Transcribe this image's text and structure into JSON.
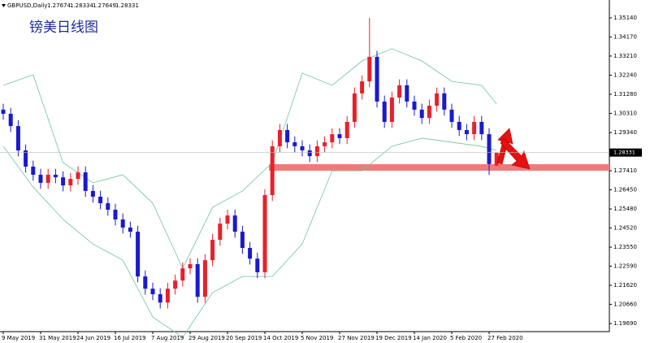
{
  "chart_data": {
    "type": "candlestick",
    "symbol": "GBPUSD,Daily",
    "title": "镑美日线图",
    "up_color": "#e8202a",
    "down_color": "#1a1acc",
    "categories": [
      "9 May 2019",
      null,
      null,
      null,
      null,
      "31 May 2019",
      null,
      null,
      null,
      null,
      "24 Jun 2019",
      null,
      null,
      null,
      null,
      "16 Jul 2019",
      null,
      null,
      null,
      null,
      "7 Aug 2019",
      null,
      null,
      null,
      null,
      "29 Aug 2019",
      null,
      null,
      null,
      null,
      "20 Sep 2019",
      null,
      null,
      null,
      null,
      "14 Oct 2019",
      null,
      null,
      null,
      null,
      "5 Nov 2019",
      null,
      null,
      null,
      null,
      "27 Nov 2019",
      null,
      null,
      null,
      null,
      "19 Dec 2019",
      null,
      null,
      null,
      null,
      "14 Jan 2020",
      null,
      null,
      null,
      null,
      "5 Feb 2020",
      null,
      null,
      null,
      null,
      "27 Feb 2020",
      null
    ],
    "open": [
      1.305,
      1.3029,
      1.2967,
      1.2844,
      1.2762,
      1.2721,
      1.268,
      1.2721,
      1.2708,
      1.2667,
      1.27,
      1.2733,
      1.2639,
      1.261,
      1.2577,
      1.2544,
      1.2495,
      1.2454,
      1.2433,
      1.2207,
      1.2145,
      1.2117,
      1.2075,
      1.2145,
      1.2186,
      1.2248,
      1.2269,
      1.2104,
      1.2289,
      1.2392,
      1.2474,
      1.2515,
      1.2433,
      1.2351,
      1.2297,
      1.2228,
      1.2618,
      1.2865,
      1.2947,
      1.2885,
      1.2865,
      1.2844,
      1.2815,
      1.2865,
      1.2885,
      1.2926,
      1.2906,
      1.2988,
      1.3132,
      1.3193,
      1.3317,
      1.3091,
      1.2988,
      1.3111,
      1.3173,
      1.3091,
      1.305,
      1.3008,
      1.307,
      1.3132,
      1.305,
      1.2988,
      1.2947,
      1.2926,
      1.2988,
      1.2926,
      1.27674
    ],
    "high": [
      1.308,
      1.3059,
      1.2997,
      1.2874,
      1.2792,
      1.2751,
      1.2751,
      1.2751,
      1.2738,
      1.273,
      1.2763,
      1.2763,
      1.2669,
      1.264,
      1.2607,
      1.2574,
      1.2525,
      1.2484,
      1.2463,
      1.2237,
      1.2175,
      1.2147,
      1.2175,
      1.2216,
      1.2278,
      1.2299,
      1.2299,
      1.2319,
      1.2422,
      1.2504,
      1.2545,
      1.2545,
      1.2463,
      1.2381,
      1.2327,
      1.2648,
      1.2895,
      1.2977,
      1.2977,
      1.2915,
      1.2895,
      1.2874,
      1.2895,
      1.2915,
      1.2956,
      1.2956,
      1.3018,
      1.3162,
      1.3223,
      1.3514,
      1.3347,
      1.3121,
      1.3141,
      1.3203,
      1.3203,
      1.3121,
      1.308,
      1.31,
      1.3162,
      1.3162,
      1.308,
      1.3018,
      1.2977,
      1.3018,
      1.3018,
      1.2956,
      1.28334
    ],
    "low": [
      1.2999,
      1.2937,
      1.2814,
      1.2732,
      1.2691,
      1.265,
      1.265,
      1.2678,
      1.2637,
      1.2637,
      1.267,
      1.2609,
      1.258,
      1.2547,
      1.2514,
      1.2465,
      1.2424,
      1.2403,
      1.2177,
      1.2115,
      1.2087,
      1.2045,
      1.2045,
      1.2115,
      1.2156,
      1.2218,
      1.2074,
      1.2074,
      1.2259,
      1.2362,
      1.2444,
      1.2403,
      1.2321,
      1.2267,
      1.2198,
      1.2198,
      1.2588,
      1.2835,
      1.2855,
      1.2835,
      1.2814,
      1.2785,
      1.2785,
      1.2835,
      1.2855,
      1.2876,
      1.2876,
      1.2958,
      1.3102,
      1.3163,
      1.3061,
      1.2958,
      1.2958,
      1.3081,
      1.3061,
      1.302,
      1.2978,
      1.2978,
      1.304,
      1.302,
      1.2958,
      1.2917,
      1.2896,
      1.2896,
      1.2896,
      1.272,
      1.27649
    ],
    "close": [
      1.3029,
      1.2967,
      1.2844,
      1.2762,
      1.2721,
      1.268,
      1.2721,
      1.2708,
      1.2667,
      1.27,
      1.2733,
      1.2639,
      1.261,
      1.2577,
      1.2544,
      1.2495,
      1.2454,
      1.2433,
      1.2207,
      1.2145,
      1.2117,
      1.2075,
      1.2145,
      1.2186,
      1.2248,
      1.2269,
      1.2104,
      1.2289,
      1.2392,
      1.2474,
      1.2515,
      1.2433,
      1.2351,
      1.2297,
      1.2228,
      1.2618,
      1.2865,
      1.2947,
      1.2885,
      1.2865,
      1.2844,
      1.2815,
      1.2865,
      1.2885,
      1.2926,
      1.2906,
      1.2988,
      1.3132,
      1.3193,
      1.3317,
      1.3091,
      1.2988,
      1.3111,
      1.3173,
      1.3091,
      1.305,
      1.3008,
      1.307,
      1.3132,
      1.305,
      1.2988,
      1.2947,
      1.2926,
      1.2988,
      1.2926,
      1.2775,
      1.28331
    ],
    "bands": [
      {
        "color": "#6fc49a",
        "x": [
          0,
          4,
          8,
          12,
          16,
          20,
          24,
          28,
          32,
          36,
          40,
          44,
          48,
          52,
          56,
          60,
          64,
          66
        ],
        "values": [
          1.3173,
          1.3226,
          1.2782,
          1.268,
          1.2721,
          1.2577,
          1.2248,
          1.2556,
          1.2639,
          1.2782,
          1.3235,
          1.3173,
          1.3296,
          1.3358,
          1.3296,
          1.3193,
          1.3173,
          1.3078
        ]
      },
      {
        "color": "#6fc49a",
        "x": [
          0,
          4,
          8,
          12,
          16,
          20,
          24,
          28,
          32,
          36,
          40,
          44,
          48,
          52,
          56,
          60,
          64,
          66
        ],
        "values": [
          1.2865,
          1.2659,
          1.2495,
          1.2371,
          1.2289,
          1.2002,
          1.1899,
          1.2125,
          1.2207,
          1.2207,
          1.2371,
          1.2741,
          1.2741,
          1.2865,
          1.2906,
          1.2885,
          1.2865,
          1.2844
        ]
      }
    ],
    "support_level": 1.2758,
    "support_color": "#f07a7a",
    "ylim": [
      1.1928,
      1.3596
    ],
    "yticks": [
      {
        "value": 1.3514,
        "label": "1.35140"
      },
      {
        "value": 1.3417,
        "label": "1.34170"
      },
      {
        "value": 1.3321,
        "label": "1.33210"
      },
      {
        "value": 1.3224,
        "label": "1.32240"
      },
      {
        "value": 1.3128,
        "label": "1.31280"
      },
      {
        "value": 1.3031,
        "label": "1.30310"
      },
      {
        "value": 1.2934,
        "label": "1.29340"
      },
      {
        "value": 1.2741,
        "label": "1.27410"
      },
      {
        "value": 1.2645,
        "label": "1.26450"
      },
      {
        "value": 1.2548,
        "label": "1.25480"
      },
      {
        "value": 1.2452,
        "label": "1.24520"
      },
      {
        "value": 1.2355,
        "label": "1.23550"
      },
      {
        "value": 1.2259,
        "label": "1.22590"
      },
      {
        "value": 1.2162,
        "label": "1.21620"
      },
      {
        "value": 1.2066,
        "label": "1.20660"
      },
      {
        "value": 1.1969,
        "label": "1.19690"
      }
    ]
  }
}
